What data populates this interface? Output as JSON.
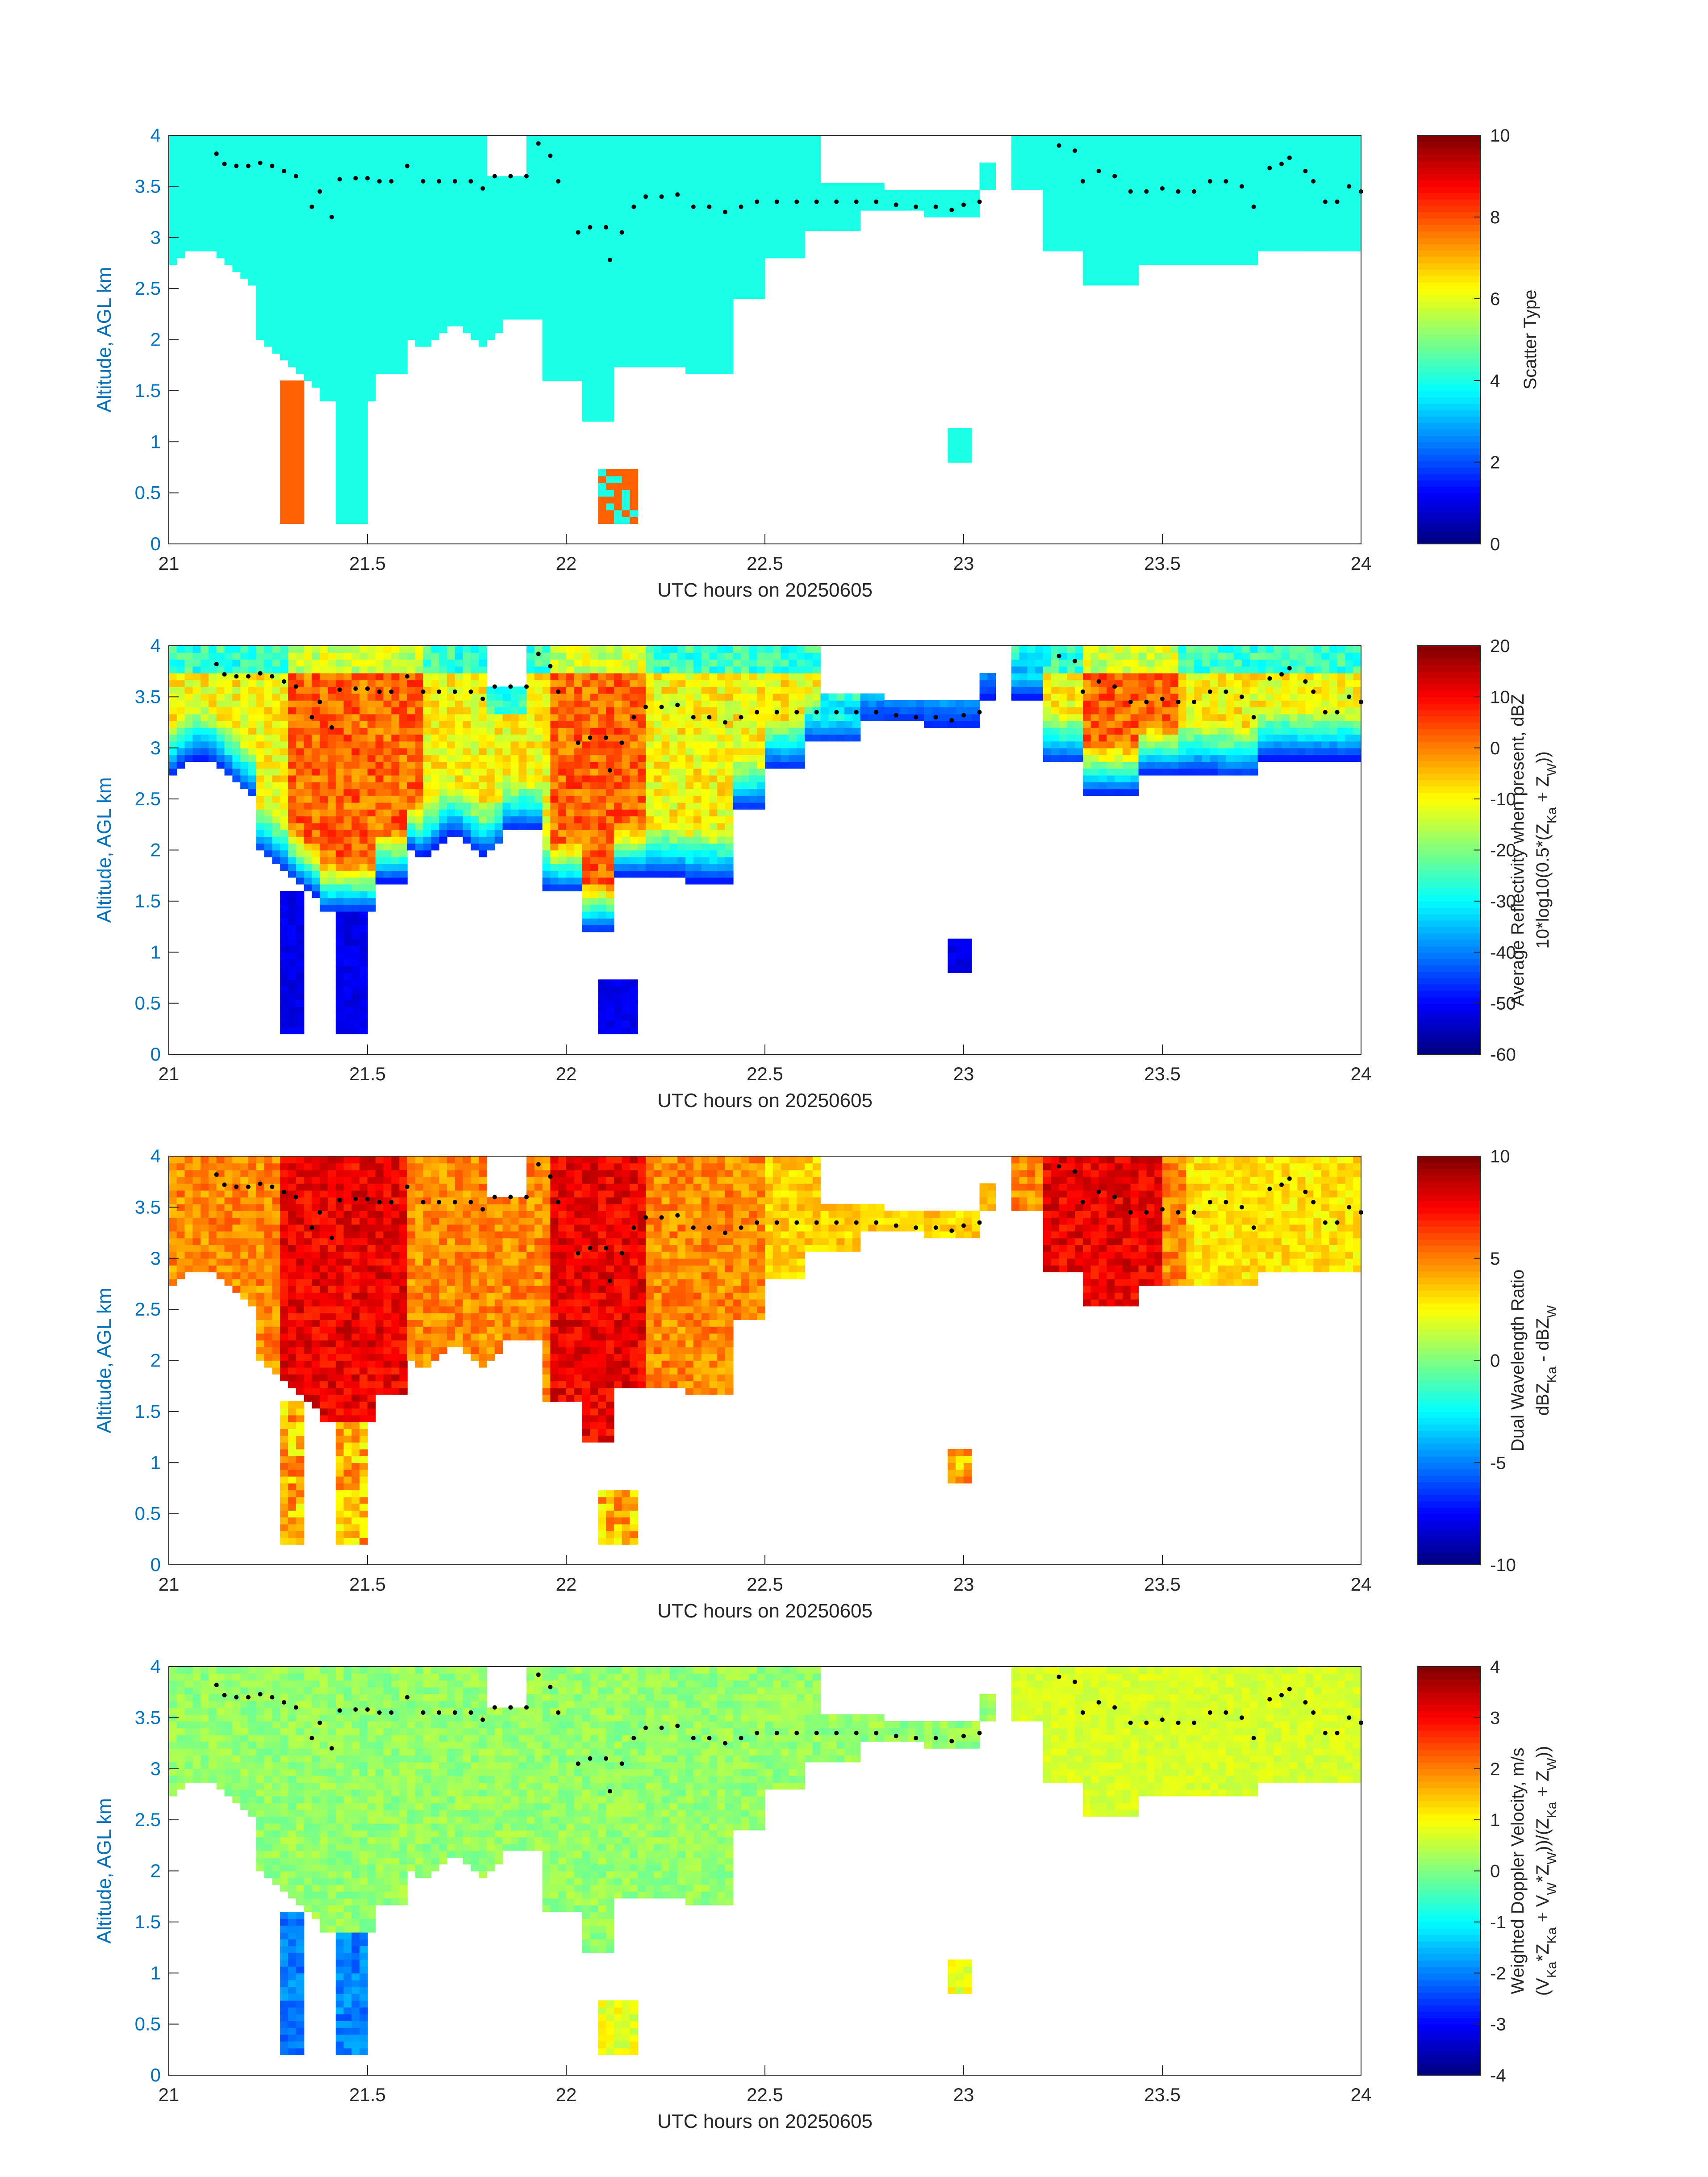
{
  "chart_data": [
    {
      "type": "heatmap",
      "xlabel": "UTC hours on 20250605",
      "ylabel": "Altitude, AGL km",
      "xlim": [
        21,
        24
      ],
      "ylim": [
        0,
        4
      ],
      "xticks": [
        "21",
        "21.5",
        "22",
        "22.5",
        "23",
        "23.5",
        "24"
      ],
      "yticks": [
        "0",
        "0.5",
        "1",
        "1.5",
        "2",
        "2.5",
        "3",
        "3.5",
        "4"
      ],
      "colorbar": {
        "label_lines": [
          "Scatter Type"
        ],
        "limits": [
          0,
          10
        ],
        "ticks": [
          "0",
          "2",
          "4",
          "6",
          "8",
          "10"
        ],
        "colormap": "jet"
      },
      "dominant_value": 4,
      "secondary_value": 7.8
    },
    {
      "type": "heatmap",
      "xlabel": "UTC hours on 20250605",
      "ylabel": "Altitude, AGL km",
      "xlim": [
        21,
        24
      ],
      "ylim": [
        0,
        4
      ],
      "xticks": [
        "21",
        "21.5",
        "22",
        "22.5",
        "23",
        "23.5",
        "24"
      ],
      "yticks": [
        "0",
        "0.5",
        "1",
        "1.5",
        "2",
        "2.5",
        "3",
        "3.5",
        "4"
      ],
      "colorbar": {
        "label_lines": [
          "Average Reflectivity when present, dBZ",
          "10*log10(0.5*(Z_Ka + Z_W))"
        ],
        "limits": [
          -60,
          20
        ],
        "ticks": [
          "-60",
          "-50",
          "-40",
          "-30",
          "-20",
          "-10",
          "0",
          "10",
          "20"
        ],
        "colormap": "jet"
      }
    },
    {
      "type": "heatmap",
      "xlabel": "UTC hours on 20250605",
      "ylabel": "Altitude, AGL km",
      "xlim": [
        21,
        24
      ],
      "ylim": [
        0,
        4
      ],
      "xticks": [
        "21",
        "21.5",
        "22",
        "22.5",
        "23",
        "23.5",
        "24"
      ],
      "yticks": [
        "0",
        "0.5",
        "1",
        "1.5",
        "2",
        "2.5",
        "3",
        "3.5",
        "4"
      ],
      "colorbar": {
        "label_lines": [
          "Dual Wavelength Ratio",
          "dBZ_Ka - dBZ_W"
        ],
        "limits": [
          -10,
          10
        ],
        "ticks": [
          "-10",
          "-5",
          "0",
          "5",
          "10"
        ],
        "colormap": "jet"
      }
    },
    {
      "type": "heatmap",
      "xlabel": "UTC hours on 20250605",
      "ylabel": "Altitude, AGL km",
      "xlim": [
        21,
        24
      ],
      "ylim": [
        0,
        4
      ],
      "xticks": [
        "21",
        "21.5",
        "22",
        "22.5",
        "23",
        "23.5",
        "24"
      ],
      "yticks": [
        "0",
        "0.5",
        "1",
        "1.5",
        "2",
        "2.5",
        "3",
        "3.5",
        "4"
      ],
      "colorbar": {
        "label_lines": [
          "Weighted Doppler Velocity, m/s",
          "(V_Ka*Z_Ka + V_W*Z_W))/(Z_Ka + Z_W))"
        ],
        "limits": [
          -4,
          4
        ],
        "ticks": [
          "-4",
          "-3",
          "-2",
          "-1",
          "0",
          "1",
          "2",
          "3",
          "4"
        ],
        "colormap": "jet"
      }
    }
  ],
  "overlay": {
    "description_markers": "black dots",
    "points": [
      [
        21.12,
        3.82
      ],
      [
        21.14,
        3.72
      ],
      [
        21.17,
        3.7
      ],
      [
        21.2,
        3.7
      ],
      [
        21.23,
        3.73
      ],
      [
        21.26,
        3.7
      ],
      [
        21.29,
        3.65
      ],
      [
        21.32,
        3.6
      ],
      [
        21.36,
        3.3
      ],
      [
        21.38,
        3.45
      ],
      [
        21.41,
        3.2
      ],
      [
        21.43,
        3.57
      ],
      [
        21.47,
        3.58
      ],
      [
        21.5,
        3.58
      ],
      [
        21.53,
        3.55
      ],
      [
        21.56,
        3.55
      ],
      [
        21.6,
        3.7
      ],
      [
        21.64,
        3.55
      ],
      [
        21.68,
        3.55
      ],
      [
        21.72,
        3.55
      ],
      [
        21.76,
        3.55
      ],
      [
        21.79,
        3.48
      ],
      [
        21.82,
        3.6
      ],
      [
        21.86,
        3.6
      ],
      [
        21.9,
        3.6
      ],
      [
        21.93,
        3.92
      ],
      [
        21.96,
        3.8
      ],
      [
        21.98,
        3.55
      ],
      [
        22.03,
        3.05
      ],
      [
        22.06,
        3.1
      ],
      [
        22.1,
        3.1
      ],
      [
        22.11,
        2.78
      ],
      [
        22.14,
        3.05
      ],
      [
        22.17,
        3.3
      ],
      [
        22.2,
        3.4
      ],
      [
        22.24,
        3.4
      ],
      [
        22.28,
        3.42
      ],
      [
        22.32,
        3.3
      ],
      [
        22.36,
        3.3
      ],
      [
        22.4,
        3.25
      ],
      [
        22.44,
        3.3
      ],
      [
        22.48,
        3.35
      ],
      [
        22.53,
        3.35
      ],
      [
        22.58,
        3.35
      ],
      [
        22.63,
        3.35
      ],
      [
        22.68,
        3.35
      ],
      [
        22.73,
        3.35
      ],
      [
        22.78,
        3.35
      ],
      [
        22.83,
        3.32
      ],
      [
        22.88,
        3.3
      ],
      [
        22.93,
        3.3
      ],
      [
        22.97,
        3.27
      ],
      [
        23.0,
        3.32
      ],
      [
        23.04,
        3.35
      ],
      [
        23.24,
        3.9
      ],
      [
        23.28,
        3.85
      ],
      [
        23.3,
        3.55
      ],
      [
        23.34,
        3.65
      ],
      [
        23.38,
        3.6
      ],
      [
        23.42,
        3.45
      ],
      [
        23.46,
        3.45
      ],
      [
        23.5,
        3.48
      ],
      [
        23.54,
        3.45
      ],
      [
        23.58,
        3.45
      ],
      [
        23.62,
        3.55
      ],
      [
        23.66,
        3.55
      ],
      [
        23.7,
        3.5
      ],
      [
        23.73,
        3.3
      ],
      [
        23.77,
        3.68
      ],
      [
        23.8,
        3.72
      ],
      [
        23.82,
        3.78
      ],
      [
        23.86,
        3.65
      ],
      [
        23.88,
        3.55
      ],
      [
        23.91,
        3.35
      ],
      [
        23.94,
        3.35
      ],
      [
        23.97,
        3.5
      ],
      [
        24.0,
        3.45
      ]
    ]
  }
}
